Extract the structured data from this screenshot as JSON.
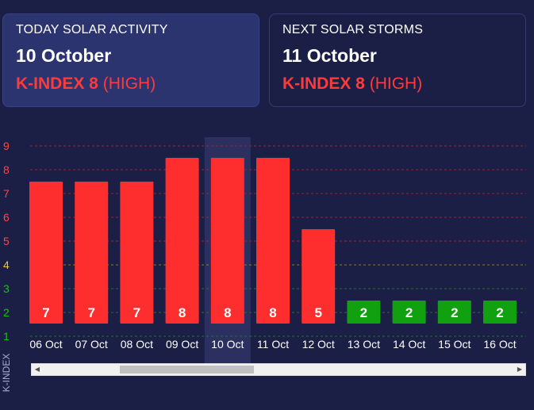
{
  "today": {
    "label": "TODAY SOLAR ACTIVITY",
    "date": "10 October",
    "k_prefix": "K-INDEX 8",
    "k_level": "(HIGH)"
  },
  "next": {
    "label": "NEXT SOLAR STORMS",
    "date": "11 October",
    "k_prefix": "K-INDEX 8",
    "k_level": "(HIGH)"
  },
  "chart_data": {
    "type": "bar",
    "ylabel": "K-INDEX",
    "yticks": [
      "9",
      "8",
      "7",
      "6",
      "5",
      "4",
      "3",
      "2",
      "1"
    ],
    "categories": [
      "06 Oct",
      "07 Oct",
      "08 Oct",
      "09 Oct",
      "10 Oct",
      "11 Oct",
      "12 Oct",
      "13 Oct",
      "14 Oct",
      "15 Oct",
      "16 Oct"
    ],
    "values": [
      7,
      7,
      7,
      8,
      8,
      8,
      5,
      2,
      2,
      2,
      2
    ],
    "highlighted_category": "10 Oct",
    "colors": {
      "high": "#ff2e2e",
      "low": "#10a010",
      "highlight_band": "#2b3060",
      "tick_high": "#ff4444",
      "tick_mid": "#f0c040",
      "tick_low": "#22b822",
      "grid_high": "#8a2a3a",
      "grid_mid": "#8a7a3a",
      "grid_low": "#2e6a3a"
    }
  },
  "scrollbar": {
    "left_arrow": "◀",
    "right_arrow": "▶"
  }
}
